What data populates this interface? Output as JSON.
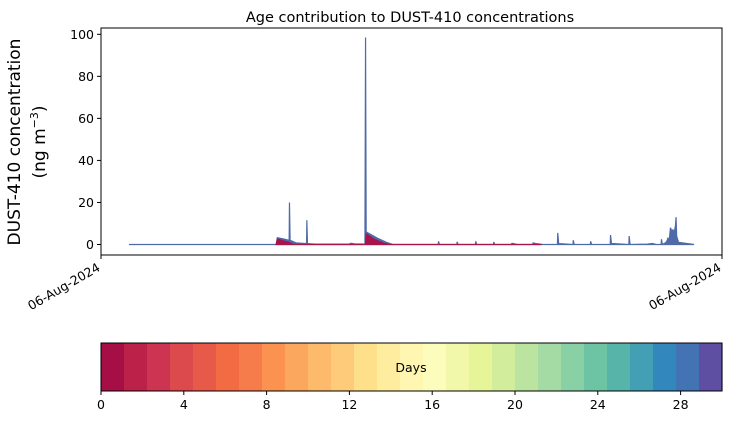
{
  "chart_data": [
    {
      "type": "area",
      "title": "Age contribution to DUST-410 concentrations",
      "ylabel_line1": "DUST-410 concentration",
      "ylabel_line2_prefix": "(ng m",
      "ylabel_line2_sup": "−3",
      "ylabel_line2_suffix": ")",
      "xlabel": "",
      "x_tick_labels": [
        "06-Aug-2024",
        "06-Aug-2024"
      ],
      "y_ticks": [
        0,
        20,
        40,
        60,
        80,
        100
      ],
      "x_range": [
        0,
        100
      ],
      "ylim": [
        -5,
        103
      ],
      "grid": false,
      "series": [
        {
          "color": "#4e6aa8",
          "points": [
            [
              4.5,
              0
            ],
            [
              28.2,
              0
            ],
            [
              28.4,
              3.2
            ],
            [
              29.5,
              2.6
            ],
            [
              30.3,
              2.0
            ],
            [
              30.35,
              20
            ],
            [
              30.45,
              2.0
            ],
            [
              31.4,
              0.8
            ],
            [
              33.1,
              0.4
            ],
            [
              33.15,
              11.5
            ],
            [
              33.25,
              0.4
            ],
            [
              34.5,
              0.2
            ],
            [
              40.0,
              0.2
            ],
            [
              40.2,
              0.6
            ],
            [
              40.8,
              0.3
            ],
            [
              42.5,
              0.2
            ],
            [
              42.6,
              98.5
            ],
            [
              42.7,
              6.0
            ],
            [
              44.5,
              3.0
            ],
            [
              46.0,
              1.0
            ],
            [
              47.0,
              0
            ],
            [
              54.3,
              0
            ],
            [
              54.35,
              1.5
            ],
            [
              54.5,
              0
            ],
            [
              57.3,
              0
            ],
            [
              57.35,
              1.3
            ],
            [
              57.5,
              0
            ],
            [
              60.3,
              0
            ],
            [
              60.35,
              1.5
            ],
            [
              60.5,
              0
            ],
            [
              63.2,
              0
            ],
            [
              63.25,
              1.2
            ],
            [
              63.4,
              0
            ],
            [
              66.0,
              0
            ],
            [
              66.2,
              0.6
            ],
            [
              67.0,
              0
            ],
            [
              69.5,
              0
            ],
            [
              69.6,
              0.8
            ],
            [
              70.5,
              0
            ],
            [
              73.5,
              0
            ],
            [
              73.55,
              5.5
            ],
            [
              73.7,
              0.4
            ],
            [
              76.0,
              0
            ],
            [
              76.05,
              2.0
            ],
            [
              76.2,
              0
            ],
            [
              78.8,
              0
            ],
            [
              78.85,
              1.5
            ],
            [
              79.0,
              0
            ],
            [
              82.0,
              0
            ],
            [
              82.05,
              4.5
            ],
            [
              82.2,
              0.5
            ],
            [
              85.0,
              0
            ],
            [
              85.05,
              4.0
            ],
            [
              85.2,
              0
            ],
            [
              88.0,
              0.2
            ],
            [
              88.8,
              0.5
            ],
            [
              89.4,
              0
            ],
            [
              90.2,
              0
            ],
            [
              90.25,
              2.5
            ],
            [
              90.4,
              0
            ],
            [
              90.9,
              0.8
            ],
            [
              91.1,
              1.5
            ],
            [
              91.3,
              3.0
            ],
            [
              91.5,
              2.0
            ],
            [
              91.7,
              8.0
            ],
            [
              91.9,
              6.5
            ],
            [
              92.1,
              7.0
            ],
            [
              92.3,
              5.5
            ],
            [
              92.5,
              9.0
            ],
            [
              92.6,
              13.0
            ],
            [
              92.7,
              4.0
            ],
            [
              93.0,
              1.0
            ],
            [
              95.5,
              0
            ]
          ]
        },
        {
          "color": "#a8154a",
          "points": [
            [
              28.2,
              0
            ],
            [
              28.4,
              2.6
            ],
            [
              29.5,
              1.6
            ],
            [
              30.3,
              1.0
            ],
            [
              31.0,
              0
            ],
            [
              42.6,
              0
            ],
            [
              42.7,
              5.0
            ],
            [
              44.0,
              2.5
            ],
            [
              45.5,
              0.6
            ],
            [
              46.5,
              0
            ],
            [
              70.0,
              0
            ],
            [
              70.3,
              0.3
            ],
            [
              71.0,
              0
            ]
          ]
        }
      ]
    },
    {
      "type": "colorbar",
      "label": "Days",
      "tick_labels": [
        "0",
        "4",
        "8",
        "12",
        "16",
        "20",
        "24",
        "28"
      ],
      "tick_values": [
        0,
        4,
        8,
        12,
        16,
        20,
        24,
        28
      ],
      "range": [
        0,
        30
      ],
      "colors": [
        "#a50f45",
        "#bb2149",
        "#cd3452",
        "#dc4a4d",
        "#e75948",
        "#f26b43",
        "#f67d4b",
        "#fb9250",
        "#fca75e",
        "#fdba6b",
        "#fecb7a",
        "#fee08b",
        "#feec9f",
        "#fff7b1",
        "#fcfdbd",
        "#f1f8a9",
        "#e6f598",
        "#d2ed9b",
        "#bbe4a0",
        "#a4daa4",
        "#89d0a4",
        "#6cc4a4",
        "#56b4a9",
        "#429fb4",
        "#3288bd",
        "#4373b3",
        "#5e4fa2"
      ]
    }
  ]
}
